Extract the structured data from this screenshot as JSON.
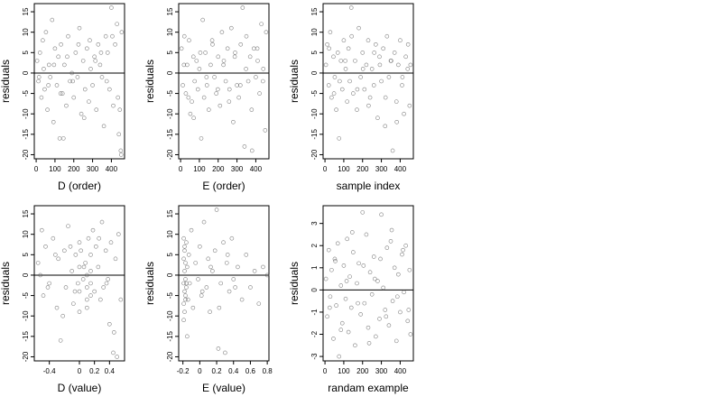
{
  "chart_data": [
    {
      "type": "scatter",
      "xlabel": "D (order)",
      "ylabel": "residuals",
      "xlim": [
        -10,
        470
      ],
      "ylim": [
        -21,
        17
      ],
      "xticks": [
        0,
        100,
        200,
        300,
        400
      ],
      "yticks": [
        -20,
        -15,
        -10,
        -5,
        0,
        5,
        10,
        15
      ],
      "hline": 0,
      "series": [
        {
          "x": [
            5,
            12,
            20,
            28,
            35,
            45,
            52,
            60,
            68,
            75,
            85,
            92,
            100,
            110,
            118,
            125,
            132,
            140,
            150,
            160,
            170,
            180,
            190,
            200,
            210,
            220,
            230,
            240,
            250,
            260,
            270,
            280,
            290,
            300,
            310,
            320,
            330,
            340,
            350,
            360,
            370,
            380,
            390,
            400,
            410,
            420,
            430,
            440,
            450,
            455,
            15,
            40,
            65,
            95,
            130,
            145,
            165,
            195,
            225,
            255,
            285,
            315,
            345,
            375,
            405,
            435,
            445,
            452
          ],
          "y": [
            3,
            -2,
            5,
            -6,
            8,
            -4,
            10,
            -9,
            2,
            -1,
            13,
            -12,
            6,
            -3,
            4,
            -16,
            7,
            -5,
            2,
            -8,
            9,
            -2,
            0,
            -6,
            5,
            -1,
            11,
            -10,
            3,
            -4,
            6,
            -7,
            1,
            -3,
            4,
            -9,
            7,
            2,
            -1,
            -13,
            9,
            5,
            -4,
            16,
            -8,
            7,
            12,
            -15,
            -19,
            10,
            -1,
            1,
            -3,
            2,
            -5,
            -16,
            4,
            -2,
            7,
            -11,
            8,
            3,
            5,
            -2,
            9,
            -6,
            -9,
            -20
          ]
        }
      ]
    },
    {
      "type": "scatter",
      "xlabel": "E (order)",
      "ylabel": "residuals",
      "xlim": [
        -10,
        470
      ],
      "ylim": [
        -21,
        17
      ],
      "xticks": [
        0,
        100,
        200,
        300,
        400
      ],
      "yticks": [
        -20,
        -15,
        -10,
        -5,
        0,
        5,
        10,
        15
      ],
      "hline": 0,
      "series": [
        {
          "x": [
            5,
            12,
            20,
            28,
            35,
            45,
            52,
            60,
            68,
            75,
            85,
            92,
            100,
            110,
            118,
            125,
            132,
            140,
            150,
            160,
            170,
            180,
            190,
            200,
            210,
            220,
            230,
            240,
            250,
            260,
            270,
            280,
            290,
            300,
            310,
            320,
            330,
            340,
            350,
            360,
            370,
            380,
            390,
            400,
            410,
            420,
            430,
            440,
            450,
            455,
            18,
            42,
            70,
            105,
            138,
            168,
            198,
            228,
            258,
            288,
            318,
            348,
            378,
            408,
            438
          ],
          "y": [
            6,
            -3,
            9,
            -5,
            2,
            8,
            -10,
            -7,
            4,
            -2,
            3,
            -4,
            1,
            -16,
            13,
            -6,
            5,
            -3,
            -9,
            2,
            7,
            -1,
            -5,
            4,
            -8,
            10,
            3,
            -2,
            6,
            -4,
            11,
            -12,
            5,
            -3,
            -6,
            7,
            16,
            -18,
            9,
            -2,
            4,
            -19,
            6,
            -1,
            3,
            -5,
            12,
            1,
            -14,
            10,
            2,
            -6,
            -11,
            5,
            -1,
            8,
            -4,
            2,
            -7,
            4,
            -3,
            1,
            -9,
            6,
            -2
          ]
        }
      ]
    },
    {
      "type": "scatter",
      "xlabel": "sample index",
      "ylabel": "residuals",
      "xlim": [
        -10,
        470
      ],
      "ylim": [
        -21,
        17
      ],
      "xticks": [
        0,
        100,
        200,
        300,
        400
      ],
      "yticks": [
        -20,
        -15,
        -10,
        -5,
        0,
        5,
        10,
        15
      ],
      "hline": 0,
      "series": [
        {
          "x": [
            5,
            12,
            20,
            28,
            35,
            45,
            52,
            60,
            68,
            75,
            85,
            92,
            100,
            110,
            118,
            125,
            132,
            140,
            150,
            160,
            170,
            180,
            190,
            200,
            210,
            220,
            230,
            240,
            250,
            260,
            270,
            280,
            290,
            300,
            310,
            320,
            330,
            340,
            350,
            360,
            370,
            380,
            390,
            400,
            410,
            420,
            430,
            440,
            450,
            455,
            22,
            48,
            78,
            108,
            142,
            172,
            202,
            232,
            262,
            292,
            322,
            352,
            382,
            412,
            442
          ],
          "y": [
            2,
            7,
            -3,
            10,
            -6,
            4,
            -1,
            -9,
            5,
            -16,
            3,
            -4,
            8,
            1,
            -7,
            6,
            -2,
            16,
            -5,
            3,
            -9,
            11,
            -1,
            5,
            -4,
            2,
            8,
            -6,
            1,
            -3,
            7,
            -11,
            4,
            -2,
            6,
            -13,
            9,
            -1,
            3,
            -19,
            5,
            -7,
            2,
            8,
            -3,
            -10,
            4,
            1,
            -8,
            2,
            6,
            -5,
            -2,
            3,
            9,
            -4,
            1,
            -8,
            5,
            2,
            -6,
            3,
            -12,
            -1,
            7
          ]
        }
      ]
    },
    {
      "type": "scatter",
      "xlabel": "D (value)",
      "ylabel": "residuals",
      "xlim": [
        -0.6,
        0.6
      ],
      "ylim": [
        -21,
        17
      ],
      "xticks": [
        -0.4,
        0,
        0.2,
        0.4
      ],
      "yticks": [
        -20,
        -15,
        -10,
        -5,
        0,
        5,
        10,
        15
      ],
      "hline": 0,
      "series": [
        {
          "x": [
            -0.55,
            -0.5,
            -0.48,
            -0.45,
            -0.4,
            -0.35,
            -0.3,
            -0.28,
            -0.25,
            -0.2,
            -0.18,
            -0.15,
            -0.1,
            -0.08,
            -0.05,
            -0.02,
            0,
            0,
            0,
            0,
            0.02,
            0.05,
            0.08,
            0.1,
            0.1,
            0.1,
            0.1,
            0.12,
            0.15,
            0.15,
            0.15,
            0.15,
            0.18,
            0.2,
            0.22,
            0.25,
            0.28,
            0.3,
            0.32,
            0.35,
            0.38,
            0.4,
            0.42,
            0.45,
            0.48,
            0.5,
            0.52,
            0.55,
            -0.52,
            -0.42,
            -0.32,
            -0.22,
            -0.12,
            -0.06,
            0.06,
            0.26,
            0.36,
            0.46
          ],
          "y": [
            3,
            11,
            -5,
            7,
            -2,
            9,
            -8,
            4,
            -16,
            6,
            -3,
            12,
            1,
            -7,
            5,
            -2,
            8,
            -4,
            -9,
            2,
            6,
            -1,
            3,
            -6,
            0,
            -3,
            -8,
            9,
            5,
            -2,
            -5,
            1,
            11,
            -4,
            7,
            2,
            -6,
            13,
            -3,
            6,
            -1,
            -12,
            8,
            -19,
            4,
            -20,
            10,
            -6,
            0,
            -3,
            5,
            -10,
            7,
            -4,
            2,
            9,
            -2,
            -14
          ]
        }
      ]
    },
    {
      "type": "scatter",
      "xlabel": "E (value)",
      "ylabel": "residuals",
      "xlim": [
        -0.25,
        0.82
      ],
      "ylim": [
        -21,
        17
      ],
      "xticks": [
        -0.2,
        0,
        0.2,
        0.4,
        0.6,
        0.8
      ],
      "yticks": [
        -20,
        -15,
        -10,
        -5,
        0,
        5,
        10,
        15
      ],
      "hline": 0,
      "series": [
        {
          "x": [
            -0.19,
            -0.19,
            -0.19,
            -0.19,
            -0.18,
            -0.18,
            -0.18,
            -0.18,
            -0.17,
            -0.17,
            -0.17,
            -0.16,
            -0.16,
            -0.15,
            -0.15,
            -0.14,
            -0.13,
            -0.12,
            -0.1,
            -0.08,
            -0.05,
            -0.02,
            0,
            0.02,
            0.05,
            0.08,
            0.1,
            0.12,
            0.15,
            0.18,
            0.2,
            0.22,
            0.25,
            0.28,
            0.3,
            0.32,
            0.35,
            0.38,
            0.4,
            0.45,
            0.5,
            0.55,
            0.6,
            0.65,
            0.7,
            0.75,
            0.8,
            -0.19,
            -0.18,
            -0.17,
            -0.16,
            0.03,
            0.13,
            0.23,
            0.33,
            0.42
          ],
          "y": [
            9,
            4,
            -2,
            -7,
            6,
            1,
            -4,
            -9,
            3,
            -1,
            -5,
            8,
            -3,
            2,
            -15,
            -6,
            5,
            -2,
            11,
            -8,
            3,
            -1,
            7,
            -5,
            13,
            -3,
            4,
            -9,
            1,
            6,
            16,
            -18,
            -2,
            8,
            -19,
            3,
            -4,
            9,
            -1,
            2,
            -6,
            5,
            -3,
            1,
            -7,
            2,
            0,
            -11,
            7,
            -6,
            -2,
            -4,
            2,
            -8,
            5,
            -3
          ]
        }
      ]
    },
    {
      "type": "scatter",
      "xlabel": "randam example",
      "ylabel": "residuals",
      "xlim": [
        -10,
        470
      ],
      "ylim": [
        -3.2,
        3.8
      ],
      "xticks": [
        0,
        100,
        200,
        300,
        400
      ],
      "yticks": [
        -3,
        -2,
        -1,
        0,
        1,
        2,
        3
      ],
      "hline": 0,
      "series": [
        {
          "x": [
            5,
            12,
            20,
            28,
            35,
            45,
            52,
            60,
            68,
            75,
            85,
            92,
            100,
            110,
            118,
            125,
            132,
            140,
            150,
            160,
            170,
            180,
            190,
            200,
            210,
            220,
            230,
            240,
            250,
            260,
            270,
            280,
            290,
            300,
            310,
            320,
            330,
            340,
            350,
            360,
            370,
            380,
            390,
            400,
            410,
            420,
            430,
            440,
            450,
            455,
            25,
            55,
            85,
            115,
            145,
            175,
            205,
            235,
            265,
            295,
            325,
            355,
            385,
            415,
            445
          ],
          "y": [
            0.5,
            -1.2,
            1.8,
            -0.3,
            0.9,
            -2.2,
            1.4,
            -0.7,
            2.1,
            -3.0,
            0.2,
            -1.5,
            1.1,
            -0.4,
            2.3,
            -1.9,
            0.6,
            -0.8,
            1.7,
            -2.5,
            0.3,
            1.2,
            -1.1,
            3.5,
            -0.6,
            2.5,
            -1.7,
            0.8,
            -0.2,
            1.5,
            -2.1,
            0.4,
            -1.3,
            3.4,
            0.1,
            -0.9,
            1.9,
            -1.6,
            2.2,
            -0.5,
            1.0,
            -2.3,
            0.7,
            -1.0,
            1.6,
            -0.1,
            2.0,
            -1.4,
            0.9,
            -2.0,
            -0.8,
            1.3,
            -1.8,
            0.4,
            2.6,
            -0.6,
            1.1,
            -2.4,
            0.5,
            1.4,
            -1.2,
            2.7,
            -0.3,
            1.8,
            -0.9
          ]
        }
      ]
    }
  ]
}
